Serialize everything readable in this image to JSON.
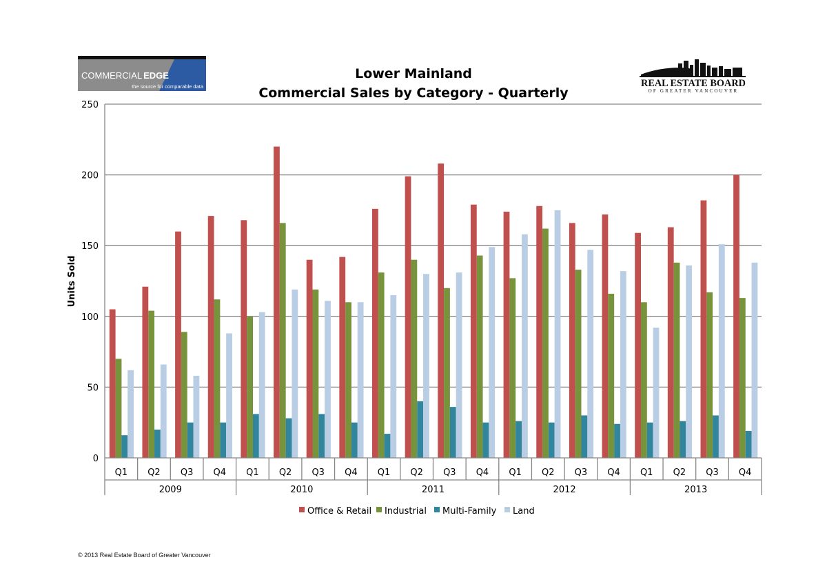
{
  "logos": {
    "left": {
      "word1": "COMMERCIAL",
      "word2": "EDGE",
      "tagline": "the source for comparable data"
    },
    "right": {
      "line1": "REAL ESTATE BOARD",
      "line2": "OF GREATER VANCOUVER"
    }
  },
  "colors": {
    "office_retail": "#c0504d",
    "industrial": "#77933c",
    "multi_family": "#31859c",
    "land": "#b9cde5",
    "logo_blue": "#2d5ba3",
    "gridline": "#868686"
  },
  "footer": "© 2013 Real Estate Board of Greater Vancouver",
  "chart_data": {
    "type": "bar",
    "title": [
      "Lower Mainland",
      "Commercial Sales by Category - Quarterly"
    ],
    "xlabel": "",
    "ylabel": "Units Sold",
    "ylim": [
      0,
      250
    ],
    "yticks": [
      0,
      50,
      100,
      150,
      200,
      250
    ],
    "grid": true,
    "legend_position": "bottom",
    "groups": [
      {
        "label": "2009",
        "quarters": [
          "Q1",
          "Q2",
          "Q3",
          "Q4"
        ]
      },
      {
        "label": "2010",
        "quarters": [
          "Q1",
          "Q2",
          "Q3",
          "Q4"
        ]
      },
      {
        "label": "2011",
        "quarters": [
          "Q1",
          "Q2",
          "Q3",
          "Q4"
        ]
      },
      {
        "label": "2012",
        "quarters": [
          "Q1",
          "Q2",
          "Q3",
          "Q4"
        ]
      },
      {
        "label": "2013",
        "quarters": [
          "Q1",
          "Q2",
          "Q3",
          "Q4"
        ]
      }
    ],
    "series": [
      {
        "name": "Office & Retail",
        "color": "#c0504d",
        "values": [
          105,
          121,
          160,
          171,
          168,
          220,
          140,
          142,
          176,
          199,
          208,
          179,
          174,
          178,
          166,
          172,
          159,
          163,
          182,
          200
        ]
      },
      {
        "name": "Industrial",
        "color": "#77933c",
        "values": [
          70,
          104,
          89,
          112,
          100,
          166,
          119,
          110,
          131,
          140,
          120,
          143,
          127,
          162,
          133,
          116,
          110,
          138,
          117,
          113
        ]
      },
      {
        "name": "Multi-Family",
        "color": "#31859c",
        "values": [
          16,
          20,
          25,
          25,
          31,
          28,
          31,
          25,
          17,
          40,
          36,
          25,
          26,
          25,
          30,
          24,
          25,
          26,
          30,
          19
        ]
      },
      {
        "name": "Land",
        "color": "#b9cde5",
        "values": [
          62,
          66,
          58,
          88,
          103,
          119,
          111,
          110,
          115,
          130,
          131,
          149,
          158,
          175,
          147,
          132,
          92,
          136,
          151,
          138
        ]
      }
    ]
  }
}
